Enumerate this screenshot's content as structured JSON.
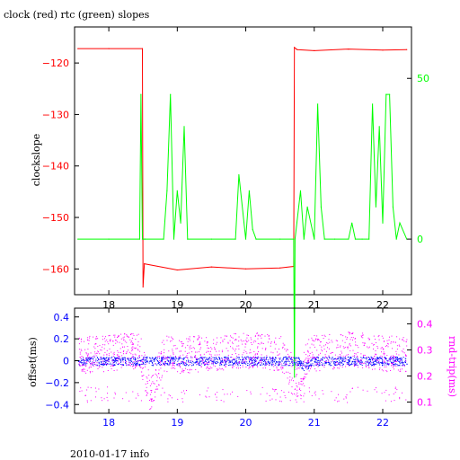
{
  "title": "clock (red) rtc (green) slopes",
  "footer": "2010-01-17 info",
  "colors": {
    "clock": "#ff0000",
    "rtc": "#00ff00",
    "offset": "#0000ff",
    "rndtrip": "#ff00ff",
    "axis": "#000000"
  },
  "chart_data": [
    {
      "type": "line",
      "title": "clock (red) rtc (green) slopes",
      "ylabel": "clockslope",
      "xlabel": "",
      "xlim": [
        17.5,
        22.42
      ],
      "ylim": [
        -165,
        -113
      ],
      "y_right_lim": [
        -17.3,
        66
      ],
      "x_ticks": [
        18,
        19,
        20,
        21,
        22
      ],
      "y_ticks": [
        -120,
        -130,
        -140,
        -150,
        -160
      ],
      "y_right_ticks": [
        0,
        50
      ],
      "grid": false,
      "series": [
        {
          "name": "clock",
          "axis": "left",
          "x": [
            17.55,
            18.0,
            18.49,
            18.5,
            18.52,
            19.0,
            19.5,
            20.0,
            20.5,
            20.7,
            20.71,
            20.75,
            21.0,
            21.5,
            22.0,
            22.35
          ],
          "y": [
            -117.2,
            -117.2,
            -117.2,
            -163.5,
            -159.0,
            -160.2,
            -159.6,
            -160.0,
            -159.8,
            -159.5,
            -117.0,
            -117.4,
            -117.6,
            -117.3,
            -117.5,
            -117.4
          ]
        },
        {
          "name": "rtc",
          "axis": "right",
          "x": [
            17.55,
            18.0,
            18.45,
            18.47,
            18.49,
            18.51,
            18.53,
            18.8,
            18.85,
            18.9,
            18.95,
            19.0,
            19.05,
            19.1,
            19.15,
            19.5,
            19.85,
            19.9,
            20.0,
            20.05,
            20.1,
            20.15,
            20.5,
            20.7,
            20.71,
            20.72,
            20.8,
            20.85,
            20.9,
            21.0,
            21.05,
            21.1,
            21.15,
            21.3,
            21.5,
            21.55,
            21.6,
            21.7,
            21.8,
            21.85,
            21.9,
            21.95,
            22.0,
            22.05,
            22.1,
            22.15,
            22.2,
            22.25,
            22.35
          ],
          "y": [
            0,
            0,
            0,
            45,
            0,
            0,
            0,
            0,
            15,
            45,
            0,
            15,
            5,
            35,
            0,
            0,
            0,
            20,
            0,
            15,
            3,
            0,
            0,
            0,
            -43,
            0,
            15,
            0,
            10,
            0,
            42,
            10,
            0,
            0,
            0,
            5,
            0,
            0,
            0,
            42,
            10,
            35,
            5,
            45,
            45,
            10,
            0,
            5,
            0
          ]
        }
      ]
    },
    {
      "type": "scatter",
      "ylabel": "offset(ms)",
      "ylabel_right": "rnd-trip(ms)",
      "xlim": [
        17.5,
        22.42
      ],
      "ylim": [
        -0.48,
        0.48
      ],
      "y_right_lim": [
        0.057,
        0.46
      ],
      "x_ticks": [
        18,
        19,
        20,
        21,
        22
      ],
      "y_ticks": [
        0.4,
        0.2,
        0,
        -0.2,
        -0.4
      ],
      "y_right_ticks": [
        0.4,
        0.3,
        0.2,
        0.1
      ],
      "grid": false,
      "series": [
        {
          "name": "offset",
          "axis": "left",
          "x": [
            17.55,
            18.0,
            18.45,
            18.55,
            18.8,
            19.0,
            19.5,
            20.0,
            20.5,
            20.75,
            20.85,
            21.0,
            21.5,
            22.0,
            22.35
          ],
          "y": [
            0.0,
            0.0,
            0.0,
            0.0,
            0.0,
            0.0,
            0.0,
            0.0,
            0.0,
            0.0,
            -0.05,
            0.0,
            0.0,
            0.0,
            0.0
          ],
          "spread": 0.04
        },
        {
          "name": "rnd-trip",
          "axis": "right",
          "x": [
            17.55,
            18.0,
            18.45,
            18.6,
            18.8,
            19.0,
            19.5,
            20.0,
            20.5,
            20.8,
            20.9,
            21.0,
            21.5,
            22.0,
            22.35
          ],
          "y": [
            0.28,
            0.29,
            0.3,
            0.13,
            0.29,
            0.28,
            0.29,
            0.3,
            0.29,
            0.17,
            0.29,
            0.29,
            0.3,
            0.29,
            0.28
          ],
          "spread": 0.07
        }
      ]
    }
  ]
}
